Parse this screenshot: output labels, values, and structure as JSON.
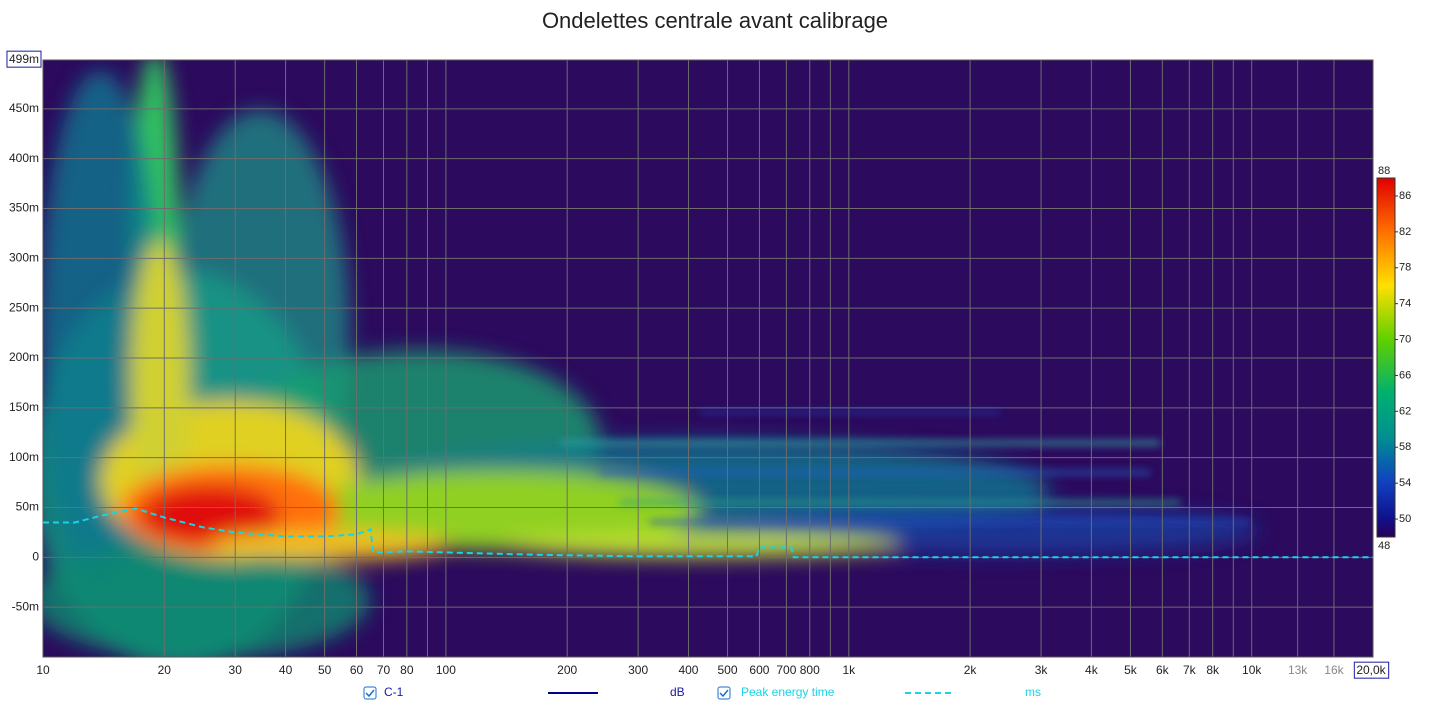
{
  "chart_data": {
    "type": "wavelet",
    "title": "Ondelettes centrale avant calibrage",
    "log_x": true,
    "grid": true,
    "xlim": [
      10,
      20000
    ],
    "ylim": [
      -100,
      499
    ],
    "xticks": [
      10,
      20,
      30,
      40,
      50,
      60,
      70,
      80,
      100,
      200,
      300,
      400,
      500,
      600,
      700,
      800,
      {
        "value": 1000,
        "label": "1k"
      },
      {
        "value": 2000,
        "label": "2k"
      },
      {
        "value": 3000,
        "label": "3k"
      },
      {
        "value": 4000,
        "label": "4k"
      },
      {
        "value": 5000,
        "label": "5k"
      },
      {
        "value": 6000,
        "label": "6k"
      },
      {
        "value": 7000,
        "label": "7k"
      },
      {
        "value": 8000,
        "label": "8k"
      },
      {
        "value": 10000,
        "label": "10k"
      },
      {
        "value": 13000,
        "label": "13k"
      },
      {
        "value": 16000,
        "label": "16k"
      },
      {
        "value": 20000,
        "label": "20,0k"
      }
    ],
    "xminor_ticks": [
      90,
      900,
      9000
    ],
    "yticks": [
      {
        "value": -50,
        "label": "-50m"
      },
      0,
      {
        "value": 50,
        "label": "50m"
      },
      {
        "value": 100,
        "label": "100m"
      },
      {
        "value": 150,
        "label": "150m"
      },
      {
        "value": 200,
        "label": "200m"
      },
      {
        "value": 250,
        "label": "250m"
      },
      {
        "value": 300,
        "label": "300m"
      },
      {
        "value": 350,
        "label": "350m"
      },
      {
        "value": 400,
        "label": "400m"
      },
      {
        "value": 450,
        "label": "450m"
      },
      {
        "value": 499,
        "label": "499m"
      }
    ],
    "colorbar": {
      "lim": [
        48,
        88
      ],
      "ticks": [
        48,
        50,
        54,
        58,
        62,
        66,
        70,
        74,
        78,
        82,
        86,
        88
      ]
    },
    "series": [
      {
        "name": "C-1",
        "unit": "dB",
        "color": "#00008b",
        "style": "solid"
      },
      {
        "name": "Peak energy time",
        "unit": "ms",
        "color": "#19d3e6",
        "style": "dashed",
        "x": [
          10,
          12,
          14,
          17,
          20,
          25,
          30,
          40,
          50,
          60,
          65,
          66,
          80,
          100,
          150,
          200,
          300,
          500,
          590,
          600,
          720,
          730,
          1000,
          2000,
          5000,
          10000,
          20000
        ],
        "values": [
          35,
          35,
          42,
          49,
          40,
          30,
          25,
          21,
          21,
          23,
          28,
          5,
          6,
          5,
          3,
          2,
          1,
          1,
          1,
          10,
          10,
          0,
          0,
          0,
          0,
          0,
          0
        ]
      }
    ]
  }
}
